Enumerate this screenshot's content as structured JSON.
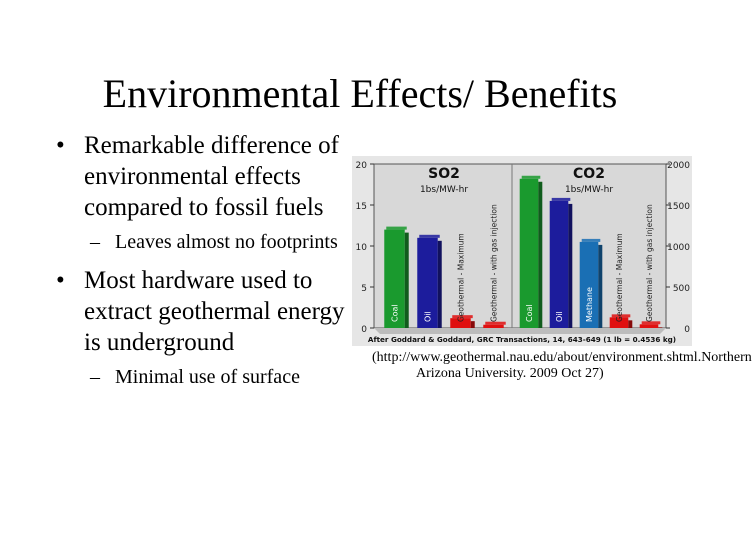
{
  "slide": {
    "title": "Environmental Effects/ Benefits",
    "bullets": [
      {
        "text": "Remarkable difference of environmental effects compared to fossil fuels",
        "sub": [
          "Leaves almost no footprints"
        ]
      },
      {
        "text": "Most hardware used to extract geothermal energy is underground",
        "sub": [
          "Minimal use of surface"
        ]
      }
    ],
    "bullet_glyph": "•",
    "sub_glyph": "–",
    "caption": "(http://www.geothermal.nau.edu/about/environment.shtml.Northern Arizona University. 2009 Oct 27)"
  },
  "chart_data": {
    "type": "bar",
    "source_note": "After Goddard & Goddard, GRC Transactions, 14, 643-649 (1 lb = 0.4536 kg)",
    "colors": {
      "Coal": "#1a9a2e",
      "Oil": "#1c1c9c",
      "Methane": "#1a6fb4",
      "Geothermal": "#e01010",
      "GeothermalInj": "#e01010"
    },
    "panels": [
      {
        "title": "SO2",
        "subtitle": "1bs/MW-hr",
        "axis": "left",
        "ylim": [
          0,
          20
        ],
        "ticks": [
          0,
          5,
          10,
          15,
          20
        ],
        "bars": [
          {
            "label": "Coal",
            "value": 12.0
          },
          {
            "label": "Oil",
            "value": 11.0
          },
          {
            "label": "Geothermal - Maximum",
            "value": 1.2
          },
          {
            "label": "Geothermal - with gas injection",
            "value": 0.4
          }
        ]
      },
      {
        "title": "CO2",
        "subtitle": "1bs/MW-hr",
        "axis": "right",
        "ylim": [
          0,
          2000
        ],
        "ticks": [
          0,
          500,
          1000,
          1500,
          2000
        ],
        "bars": [
          {
            "label": "Coal",
            "value": 1820
          },
          {
            "label": "Oil",
            "value": 1550
          },
          {
            "label": "Methane",
            "value": 1050
          },
          {
            "label": "Geothermal - Maximum",
            "value": 130
          },
          {
            "label": "Geothermal - with gas injection",
            "value": 45
          }
        ]
      }
    ]
  }
}
